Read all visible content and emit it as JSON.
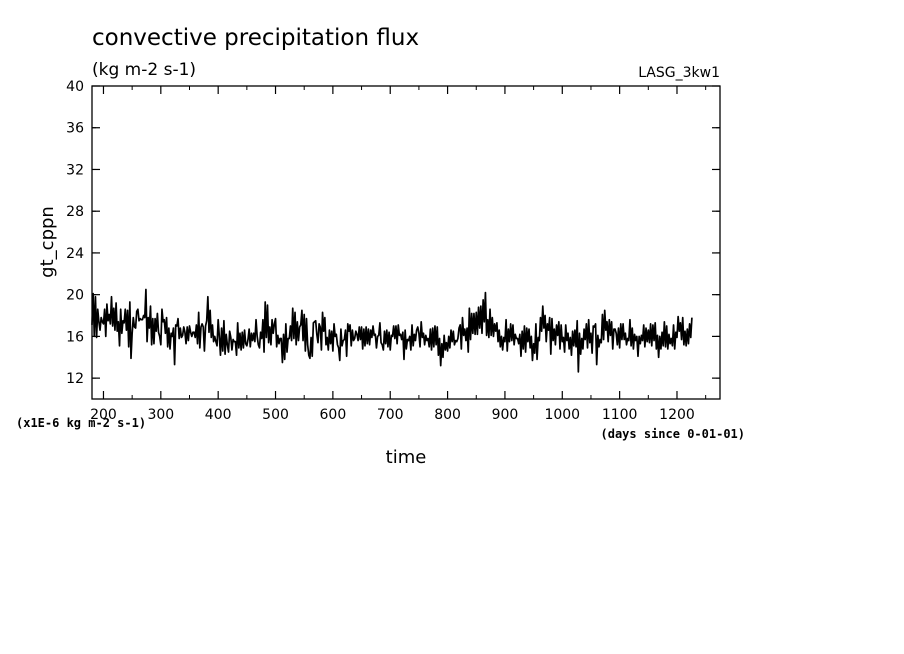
{
  "chart_data": {
    "type": "line",
    "title": "convective precipitation flux",
    "subtitle": "(kg m-2 s-1)",
    "run_label": "LASG_3kw1",
    "xlabel": "time",
    "ylabel": "gt_cppn",
    "x_units_note": "(days since 0-01-01)",
    "y_scale_note": "(x1E-6 kg m-2 s-1)",
    "xlim": [
      180,
      1275
    ],
    "ylim": [
      10,
      40
    ],
    "x_ticks": [
      200,
      300,
      400,
      500,
      600,
      700,
      800,
      900,
      1000,
      1100,
      1200
    ],
    "x_tick_labels": [
      "200",
      "300",
      "400",
      "500",
      "600",
      "700",
      "800",
      "900",
      "1000",
      "1100",
      "1200"
    ],
    "y_ticks": [
      12,
      16,
      20,
      24,
      28,
      32,
      36,
      40
    ],
    "y_tick_labels": [
      "12",
      "16",
      "20",
      "24",
      "28",
      "32",
      "36",
      "40"
    ],
    "grid": false,
    "series": [
      {
        "color": "#000000",
        "x_start": 180,
        "x_step": 2,
        "values": [
          17.1,
          20.1,
          16.0,
          19.8,
          15.9,
          18.6,
          17.4,
          16.6,
          17.8,
          17.4,
          17.2,
          18.6,
          16.0,
          19.1,
          17.5,
          18.1,
          17.2,
          19.8,
          17.0,
          18.7,
          16.6,
          19.2,
          16.5,
          17.4,
          15.1,
          18.6,
          16.3,
          17.5,
          17.3,
          18.6,
          16.6,
          18.5,
          15.0,
          19.3,
          13.9,
          16.3,
          17.8,
          16.9,
          16.8,
          18.4,
          18.6,
          17.5,
          17.7,
          17.6,
          17.6,
          18.0,
          17.8,
          20.5,
          15.5,
          17.8,
          16.8,
          18.9,
          15.2,
          17.7,
          15.3,
          17.7,
          16.5,
          18.2,
          16.4,
          16.0,
          15.2,
          18.6,
          17.4,
          17.6,
          16.3,
          17.8,
          15.0,
          16.8,
          14.8,
          16.3,
          16.0,
          16.8,
          13.3,
          17.1,
          17.0,
          17.7,
          15.8,
          16.8,
          15.9,
          16.1,
          16.9,
          16.4,
          15.3,
          16.9,
          15.6,
          17.0,
          16.4,
          16.0,
          16.4,
          16.4,
          15.9,
          17.1,
          15.3,
          18.3,
          14.9,
          16.9,
          17.2,
          16.9,
          14.6,
          17.0,
          17.5,
          19.8,
          16.4,
          18.5,
          15.9,
          17.1,
          15.5,
          16.0,
          15.5,
          15.1,
          17.6,
          16.0,
          14.2,
          16.8,
          14.6,
          17.5,
          14.3,
          16.2,
          15.2,
          14.5,
          16.5,
          15.9,
          14.7,
          15.7,
          15.5,
          15.5,
          14.2,
          17.3,
          14.9,
          16.3,
          14.7,
          16.4,
          14.9,
          16.6,
          15.3,
          15.1,
          15.7,
          16.7,
          15.0,
          16.3,
          15.6,
          16.3,
          15.5,
          17.6,
          16.0,
          15.2,
          14.9,
          16.4,
          15.8,
          17.6,
          14.5,
          19.3,
          15.9,
          19.0,
          15.4,
          16.9,
          15.2,
          17.6,
          16.3,
          17.2,
          17.7,
          15.0,
          16.1,
          15.3,
          15.8,
          15.8,
          13.5,
          16.2,
          13.8,
          17.2,
          14.5,
          15.8,
          15.8,
          17.0,
          15.6,
          18.7,
          15.8,
          18.3,
          15.2,
          17.4,
          15.6,
          16.9,
          17.1,
          18.5,
          15.6,
          18.1,
          14.6,
          17.7,
          15.2,
          14.2,
          13.9,
          15.9,
          14.1,
          17.3,
          17.4,
          17.5,
          16.2,
          15.4,
          17.2,
          16.9,
          14.7,
          18.3,
          16.5,
          17.8,
          15.2,
          15.9,
          14.7,
          16.6,
          15.3,
          16.5,
          14.6,
          17.2,
          16.0,
          16.2,
          15.2,
          14.9,
          13.7,
          16.7,
          15.1,
          15.6,
          15.7,
          16.6,
          14.1,
          17.2,
          16.5,
          17.1,
          15.1,
          16.6,
          15.6,
          15.8,
          16.5,
          16.2,
          15.6,
          16.9,
          15.7,
          16.9,
          14.8,
          16.7,
          15.1,
          16.9,
          15.3,
          16.7,
          15.2,
          16.6,
          15.9,
          17.0,
          16.1,
          16.2,
          14.9,
          16.0,
          16.1,
          17.3,
          15.4,
          15.2,
          14.7,
          16.5,
          15.3,
          16.6,
          15.0,
          16.4,
          14.7,
          16.1,
          16.0,
          17.0,
          15.8,
          17.0,
          15.3,
          17.1,
          16.1,
          16.2,
          15.7,
          16.4,
          13.8,
          16.6,
          14.8,
          15.7,
          15.6,
          16.0,
          14.7,
          17.1,
          15.1,
          16.2,
          15.6,
          16.6,
          16.9,
          16.3,
          15.0,
          17.4,
          15.9,
          16.3,
          15.2,
          16.1,
          15.6,
          15.8,
          15.0,
          16.7,
          14.7,
          16.8,
          15.0,
          17.0,
          15.2,
          16.9,
          14.2,
          15.8,
          13.2,
          15.3,
          14.0,
          16.1,
          14.7,
          15.4,
          14.6,
          16.0,
          14.9,
          16.6,
          15.5,
          16.5,
          15.2,
          15.6,
          15.5,
          15.8,
          16.8,
          17.1,
          14.8,
          17.8,
          16.1,
          16.7,
          15.6,
          16.8,
          14.5,
          18.7,
          15.7,
          18.2,
          16.3,
          18.2,
          16.2,
          18.3,
          16.2,
          18.8,
          16.8,
          18.9,
          16.3,
          19.5,
          17.4,
          20.2,
          16.1,
          17.6,
          15.9,
          18.6,
          16.1,
          17.8,
          16.0,
          17.2,
          16.5,
          17.3,
          15.5,
          16.6,
          15.0,
          16.0,
          14.7,
          15.9,
          15.5,
          17.6,
          14.6,
          16.7,
          15.5,
          17.2,
          15.6,
          17.1,
          15.2,
          16.2,
          15.8,
          15.8,
          15.3,
          16.2,
          14.1,
          16.5,
          14.8,
          17.0,
          14.5,
          16.8,
          15.5,
          16.7,
          14.9,
          16.0,
          13.7,
          15.3,
          14.4,
          17.2,
          13.8,
          15.9,
          15.6,
          17.8,
          16.5,
          18.9,
          16.8,
          18.0,
          15.5,
          17.2,
          16.6,
          17.8,
          14.3,
          17.7,
          15.6,
          16.7,
          15.2,
          17.1,
          16.1,
          17.4,
          14.8,
          17.1,
          15.5,
          15.9,
          14.5,
          17.1,
          15.6,
          16.3,
          14.8,
          15.9,
          14.2,
          16.5,
          15.1,
          16.6,
          15.0,
          17.5,
          12.6,
          16.3,
          14.3,
          15.8,
          14.8,
          16.7,
          15.7,
          17.2,
          14.9,
          17.6,
          15.4,
          16.3,
          14.4,
          17.0,
          16.9,
          17.2,
          13.3,
          16.1,
          15.0,
          15.7,
          15.4,
          18.1,
          15.7,
          18.5,
          16.6,
          17.4,
          15.5,
          17.6,
          16.1,
          17.4,
          14.8,
          16.7,
          16.7,
          16.3,
          15.2,
          16.8,
          14.9,
          17.2,
          15.7,
          17.2,
          15.7,
          16.3,
          15.2,
          15.8,
          15.6,
          17.6,
          15.1,
          16.8,
          14.8,
          16.2,
          15.6,
          16.0,
          14.1,
          16.0,
          15.3,
          16.1,
          15.6,
          17.1,
          15.0,
          16.8,
          15.5,
          16.6,
          15.4,
          17.2,
          15.1,
          17.1,
          15.6,
          17.3,
          14.8,
          16.1,
          14.0,
          16.0,
          14.8,
          16.4,
          15.1,
          17.4,
          15.0,
          17.0,
          14.8,
          16.2,
          15.3,
          15.8,
          15.1,
          17.1,
          14.8,
          16.4,
          15.9,
          17.9,
          16.5,
          17.3,
          15.7,
          17.8,
          15.2,
          16.5,
          15.1,
          16.7,
          15.3,
          17.2,
          15.9,
          17.8
        ]
      }
    ]
  }
}
